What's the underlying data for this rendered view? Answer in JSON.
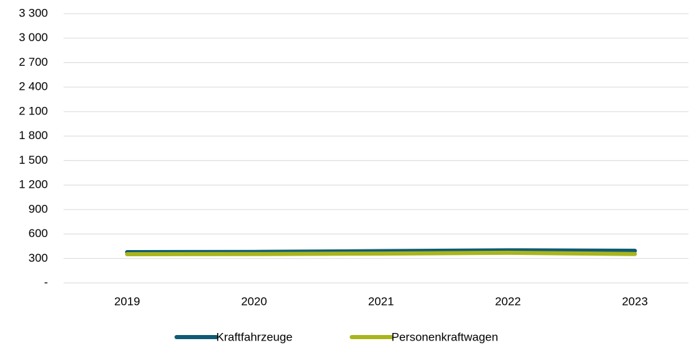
{
  "chart_data": {
    "type": "line",
    "categories": [
      "2019",
      "2020",
      "2021",
      "2022",
      "2023"
    ],
    "series": [
      {
        "name": "Kraftfahrzeuge",
        "color": "#0f5b74",
        "values": [
          378,
          380,
          390,
          400,
          395
        ]
      },
      {
        "name": "Personenkraftwagen",
        "color": "#a9b51c",
        "values": [
          353,
          355,
          360,
          370,
          355
        ]
      }
    ],
    "ylim": [
      0,
      3300
    ],
    "yticks": [
      {
        "value": 0,
        "label": "-"
      },
      300,
      600,
      900,
      {
        "value": 1200,
        "label": "1 200"
      },
      {
        "value": 1500,
        "label": "1 500"
      },
      {
        "value": 1800,
        "label": "1 800"
      },
      {
        "value": 2100,
        "label": "2 100"
      },
      {
        "value": 2400,
        "label": "2 400"
      },
      {
        "value": 2700,
        "label": "2 700"
      },
      {
        "value": 3000,
        "label": "3 000"
      },
      {
        "value": 3300,
        "label": "3 300"
      }
    ],
    "grid": true,
    "legend": "bottom"
  }
}
